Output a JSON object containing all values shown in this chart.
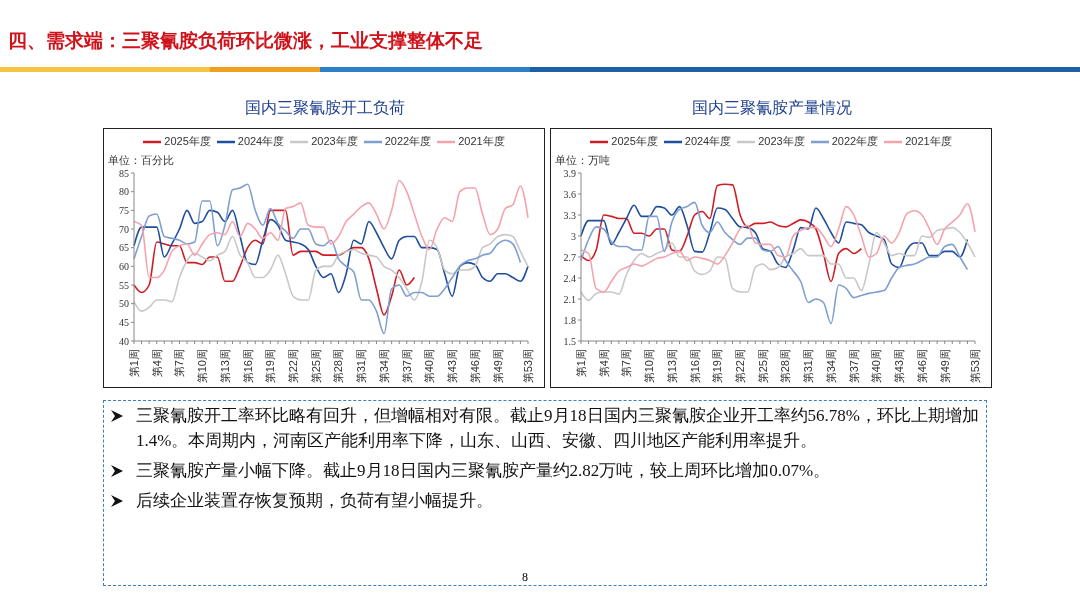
{
  "chart_data": [
    {
      "type": "line",
      "title": "国内三聚氰胺开工负荷",
      "ylabel": "单位：百分比",
      "legend": "top",
      "marker": "none",
      "line_style": "solid",
      "categories": [
        "第1周",
        null,
        null,
        "第4周",
        null,
        null,
        "第7周",
        null,
        null,
        "第10周",
        null,
        null,
        "第13周",
        null,
        null,
        "第16周",
        null,
        null,
        "第19周",
        null,
        null,
        "第22周",
        null,
        null,
        "第25周",
        null,
        null,
        "第28周",
        null,
        null,
        "第31周",
        null,
        null,
        "第34周",
        null,
        null,
        "第37周",
        null,
        null,
        "第40周",
        null,
        null,
        "第43周",
        null,
        null,
        "第46周",
        null,
        null,
        "第49周",
        null,
        null,
        null,
        "第53周"
      ],
      "ylim": [
        40,
        85
      ],
      "yticks": [
        40,
        45,
        50,
        55,
        60,
        65,
        70,
        75,
        80,
        85
      ],
      "series": [
        {
          "name": "2025年度",
          "color": "#d01c24",
          "values": [
            55,
            53,
            55,
            66.5,
            66,
            65.5,
            65.5,
            61,
            61,
            60.5,
            62.5,
            62.5,
            56,
            56,
            60,
            65,
            67,
            66,
            75,
            75,
            75,
            63,
            64,
            64,
            64,
            63,
            63,
            63,
            64,
            65,
            65,
            62,
            54,
            47,
            52,
            59,
            55,
            57,
            null,
            null,
            null,
            null,
            null,
            null,
            null,
            null,
            null,
            null,
            null,
            null,
            null,
            null,
            null
          ]
        },
        {
          "name": "2024年度",
          "color": "#1f4e9c",
          "values": [
            65.5,
            70.5,
            70.5,
            70.5,
            62.5,
            66,
            70,
            75,
            71.5,
            72,
            75,
            74.5,
            72,
            75,
            68,
            61,
            60.5,
            67,
            72.5,
            71,
            67,
            66.5,
            66,
            64.5,
            60,
            57,
            58,
            53,
            58,
            67,
            66,
            72,
            69,
            65,
            62,
            67,
            68,
            68,
            65,
            65,
            64.5,
            58,
            52,
            60,
            61,
            60.5,
            57,
            56,
            58,
            58,
            57,
            56,
            60
          ]
        },
        {
          "name": "2023年度",
          "color": "#c8c8c8",
          "values": [
            50.5,
            48,
            49,
            51,
            51,
            50.5,
            57,
            61.5,
            63.5,
            62.5,
            61.5,
            63,
            64,
            68,
            63,
            61,
            57,
            57,
            59,
            63,
            58,
            52,
            51,
            51,
            59,
            60,
            60,
            63,
            64,
            64.5,
            63.5,
            63,
            62.5,
            60,
            59,
            57,
            54,
            51,
            56,
            67,
            65,
            59,
            58,
            59,
            59,
            60,
            65,
            66,
            68,
            68.5,
            68,
            64,
            60
          ]
        },
        {
          "name": "2022年度",
          "color": "#7f9fd0",
          "values": [
            62,
            68,
            73.5,
            74,
            68,
            67.5,
            67,
            66,
            66.5,
            77.5,
            77.5,
            65.5,
            71,
            80.5,
            81,
            82,
            75,
            71,
            75.5,
            71.5,
            69.5,
            67.5,
            70,
            70,
            66,
            65.5,
            67,
            62,
            60,
            58.5,
            51,
            51,
            48,
            42,
            54,
            55,
            52,
            53,
            53,
            52,
            52,
            54,
            57,
            60,
            61.5,
            62,
            63,
            63.5,
            66,
            67,
            66,
            61,
            null
          ]
        },
        {
          "name": "2021年度",
          "color": "#f4a3ae",
          "values": [
            72,
            71,
            57,
            57,
            59,
            64,
            65.5,
            66,
            63,
            66,
            68.5,
            69,
            68.5,
            72,
            68,
            71.5,
            70,
            67.5,
            69,
            67,
            75.5,
            76,
            77,
            71,
            70.5,
            70.5,
            66,
            68,
            72,
            74,
            76,
            77,
            74,
            70,
            75,
            83,
            80,
            74,
            68,
            64.5,
            70,
            73,
            72,
            80,
            81,
            81,
            74,
            68.5,
            70,
            75.5,
            76.5,
            81.5,
            73
          ]
        }
      ]
    },
    {
      "type": "line",
      "title": "国内三聚氰胺产量情况",
      "ylabel": "单位：万吨",
      "legend": "top",
      "marker": "none",
      "line_style": "solid",
      "categories": [
        "第1周",
        null,
        null,
        "第4周",
        null,
        null,
        "第7周",
        null,
        null,
        "第10周",
        null,
        null,
        "第13周",
        null,
        null,
        "第16周",
        null,
        null,
        "第19周",
        null,
        null,
        "第22周",
        null,
        null,
        "第25周",
        null,
        null,
        "第28周",
        null,
        null,
        "第31周",
        null,
        null,
        "第34周",
        null,
        null,
        "第37周",
        null,
        null,
        "第40周",
        null,
        null,
        "第43周",
        null,
        null,
        "第46周",
        null,
        null,
        "第49周",
        null,
        null,
        null,
        "第53周"
      ],
      "ylim": [
        1.5,
        3.9
      ],
      "yticks": [
        1.5,
        1.8,
        2.1,
        2.4,
        2.7,
        3,
        3.3,
        3.6,
        3.9
      ],
      "series": [
        {
          "name": "2025年度",
          "color": "#d01c24",
          "values": [
            2.72,
            2.65,
            2.8,
            3.3,
            3.28,
            3.25,
            3.25,
            3.04,
            3.04,
            3.0,
            3.1,
            3.1,
            2.8,
            2.78,
            3.0,
            3.3,
            3.35,
            3.25,
            3.72,
            3.74,
            3.73,
            3.3,
            3.13,
            3.18,
            3.18,
            3.2,
            3.15,
            3.13,
            3.18,
            3.23,
            3.2,
            3.1,
            2.75,
            2.35,
            2.75,
            2.82,
            2.75,
            2.82,
            null,
            null,
            null,
            null,
            null,
            null,
            null,
            null,
            null,
            null,
            null,
            null,
            null,
            null,
            null
          ]
        },
        {
          "name": "2024年度",
          "color": "#1f4e9c",
          "values": [
            3.0,
            3.22,
            3.22,
            3.22,
            2.88,
            3.05,
            3.25,
            3.44,
            3.28,
            3.28,
            3.42,
            3.4,
            3.3,
            3.42,
            3.15,
            2.78,
            2.77,
            3.05,
            3.4,
            3.38,
            3.25,
            3.13,
            3.12,
            3.05,
            2.82,
            2.78,
            2.6,
            2.55,
            2.8,
            3.12,
            3.1,
            3.4,
            3.25,
            3.05,
            2.9,
            3.2,
            3.18,
            3.16,
            3.05,
            3.0,
            2.95,
            2.6,
            2.55,
            2.8,
            2.9,
            2.9,
            2.72,
            2.72,
            2.78,
            2.78,
            2.7,
            2.95,
            null
          ]
        },
        {
          "name": "2023年度",
          "color": "#c8c8c8",
          "values": [
            2.2,
            2.08,
            2.18,
            2.2,
            2.2,
            2.17,
            2.45,
            2.65,
            2.75,
            2.7,
            2.75,
            2.8,
            2.9,
            2.7,
            2.7,
            2.5,
            2.45,
            2.5,
            2.7,
            2.68,
            2.25,
            2.2,
            2.2,
            2.55,
            2.6,
            2.52,
            2.55,
            2.7,
            2.75,
            2.82,
            2.72,
            2.72,
            2.72,
            2.6,
            2.6,
            2.4,
            2.4,
            2.22,
            2.6,
            3.05,
            2.9,
            2.72,
            2.75,
            2.72,
            2.72,
            3.0,
            2.98,
            3.08,
            3.1,
            3.12,
            3.05,
            2.9,
            2.7
          ]
        },
        {
          "name": "2022年度",
          "color": "#7f9fd0",
          "values": [
            2.65,
            2.95,
            3.13,
            3.1,
            2.92,
            2.85,
            2.85,
            2.8,
            2.8,
            3.28,
            3.28,
            2.78,
            3.2,
            3.38,
            3.42,
            3.48,
            3.15,
            3.05,
            3.2,
            3.05,
            2.95,
            2.88,
            2.97,
            2.97,
            2.8,
            2.78,
            2.85,
            2.65,
            2.5,
            2.35,
            2.05,
            2.1,
            2.05,
            1.75,
            2.3,
            2.25,
            2.12,
            2.15,
            2.18,
            2.2,
            2.22,
            2.4,
            2.55,
            2.58,
            2.6,
            2.65,
            2.7,
            2.7,
            2.85,
            2.88,
            2.7,
            2.52,
            null
          ]
        },
        {
          "name": "2021年度",
          "color": "#f4a3ae",
          "values": [
            2.8,
            2.75,
            2.25,
            2.2,
            2.35,
            2.5,
            2.55,
            2.6,
            2.57,
            2.62,
            2.68,
            2.7,
            2.75,
            2.78,
            2.65,
            2.7,
            2.68,
            2.65,
            2.6,
            2.72,
            2.9,
            3.1,
            3.15,
            2.9,
            2.88,
            2.88,
            2.72,
            2.7,
            3.0,
            3.08,
            3.12,
            3.12,
            3.0,
            2.85,
            3.1,
            3.42,
            3.3,
            3.0,
            2.7,
            2.75,
            3.0,
            2.9,
            3.05,
            3.32,
            3.36,
            3.3,
            3.1,
            2.88,
            3.1,
            3.2,
            3.3,
            3.46,
            3.06
          ]
        }
      ]
    },
    {
      "type": "other",
      "title": "四、需求端：三聚氰胺负荷环比微涨，工业支撑整体不足",
      "annotations": [
        "三聚氰胺开工率环比略有回升，但增幅相对有限。截止9月18日国内三聚氰胺企业开工率约56.78%，环比上期增加1.4%。本周期内，河南区产能利用率下降，山东、山西、安徽、四川地区产能利用率提升。",
        "三聚氰胺产量小幅下降。截止9月18日国内三聚氰胺产量约2.82万吨，较上周环比增加0.07%。",
        "后续企业装置存恢复预期，负荷有望小幅提升。",
        "8"
      ]
    }
  ]
}
